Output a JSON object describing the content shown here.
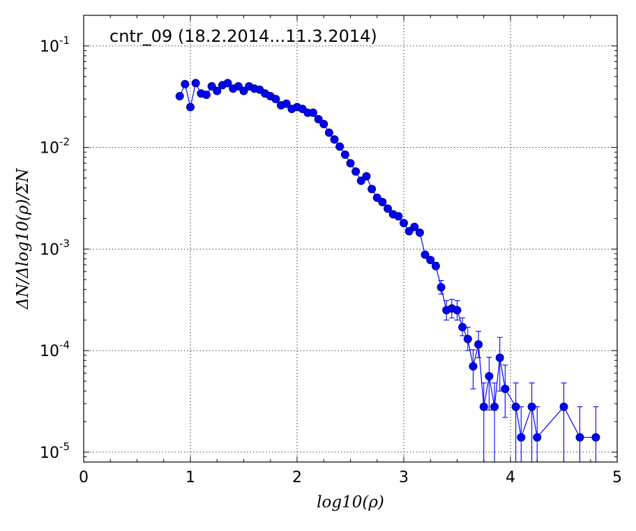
{
  "chart_data": {
    "type": "scatter",
    "title": "cntr_09 (18.2.2014...11.3.2014)",
    "xlabel": "log10(ρ)",
    "ylabel": "ΔN/Δlog10(ρ)/ΣN",
    "xlim": [
      0,
      5
    ],
    "ylim": [
      8e-06,
      0.2
    ],
    "yscale": "log",
    "grid": true,
    "x_ticks": [
      "0",
      "1",
      "2",
      "3",
      "4",
      "5"
    ],
    "y_ticks": [
      {
        "base": "10",
        "exp": "-1"
      },
      {
        "base": "10",
        "exp": "-2"
      },
      {
        "base": "10",
        "exp": "-3"
      },
      {
        "base": "10",
        "exp": "-4"
      },
      {
        "base": "10",
        "exp": "-5"
      }
    ],
    "colors": {
      "series": "#0000ff",
      "marker_edge": "#000080"
    },
    "series": [
      {
        "x": [
          0.9,
          0.95,
          1.0,
          1.05,
          1.1,
          1.15,
          1.2,
          1.25,
          1.3,
          1.35,
          1.4,
          1.45,
          1.5,
          1.55,
          1.6,
          1.65,
          1.7,
          1.75,
          1.8,
          1.85,
          1.9,
          1.95,
          2.0,
          2.05,
          2.1,
          2.15,
          2.2,
          2.25,
          2.3,
          2.35,
          2.4,
          2.45,
          2.5,
          2.55,
          2.6,
          2.65,
          2.7,
          2.75,
          2.8,
          2.85,
          2.9,
          2.95,
          3.0,
          3.05,
          3.1,
          3.15,
          3.2,
          3.25,
          3.3,
          3.35,
          3.4,
          3.45,
          3.5,
          3.55,
          3.6,
          3.65,
          3.7,
          3.75,
          3.8,
          3.85,
          3.9,
          3.95,
          4.05,
          4.1,
          4.2,
          4.25,
          4.5,
          4.65,
          4.8
        ],
        "y": [
          0.032,
          0.042,
          0.025,
          0.043,
          0.034,
          0.033,
          0.04,
          0.036,
          0.041,
          0.043,
          0.038,
          0.04,
          0.036,
          0.04,
          0.038,
          0.037,
          0.034,
          0.032,
          0.03,
          0.026,
          0.027,
          0.024,
          0.025,
          0.024,
          0.022,
          0.022,
          0.019,
          0.017,
          0.014,
          0.012,
          0.0102,
          0.0085,
          0.007,
          0.0058,
          0.0047,
          0.0052,
          0.0039,
          0.0032,
          0.0029,
          0.0025,
          0.0022,
          0.0021,
          0.0018,
          0.0015,
          0.00165,
          0.00145,
          0.00088,
          0.00078,
          0.00068,
          0.00042,
          0.00025,
          0.00026,
          0.00025,
          0.00017,
          0.00013,
          7e-05,
          0.000115,
          2.8e-05,
          5.6e-05,
          2.8e-05,
          8.5e-05,
          4.2e-05,
          2.8e-05,
          1.4e-05,
          2.8e-05,
          1.4e-05,
          2.8e-05,
          1.4e-05,
          1.4e-05
        ],
        "yerr_low": [
          0,
          0,
          0,
          0,
          0,
          0,
          0,
          0,
          0,
          0,
          0,
          0,
          0,
          0,
          0,
          0,
          0,
          0,
          0,
          0,
          0,
          0,
          0,
          0,
          0,
          0,
          0,
          0,
          0,
          0,
          0,
          0,
          0,
          0,
          0,
          0,
          0,
          0,
          0,
          0,
          0,
          0,
          0,
          0,
          0,
          0,
          4e-05,
          4e-05,
          5e-05,
          6e-05,
          5e-05,
          5e-05,
          5e-05,
          3e-05,
          3e-05,
          2.8e-05,
          3e-05,
          2e-05,
          3e-05,
          2e-05,
          4.5e-05,
          2e-05,
          2e-05,
          1.4e-05,
          2e-05,
          1.4e-05,
          2e-05,
          1.4e-05,
          1.4e-05
        ],
        "yerr_high": [
          0,
          0,
          0,
          0,
          0,
          0,
          0,
          0,
          0,
          0,
          0,
          0,
          0,
          0,
          0,
          0,
          0,
          0,
          0,
          0,
          0,
          0,
          0,
          0,
          0,
          0,
          0,
          0,
          0,
          0,
          0,
          0,
          0,
          0,
          0,
          0,
          0,
          0,
          0,
          0,
          0,
          0,
          0,
          0,
          0,
          0,
          5e-05,
          5e-05,
          6e-05,
          7e-05,
          6e-05,
          6e-05,
          6e-05,
          4e-05,
          4e-05,
          3.2e-05,
          4e-05,
          2e-05,
          3e-05,
          2e-05,
          5e-05,
          3e-05,
          2e-05,
          1.4e-05,
          2e-05,
          1.4e-05,
          2e-05,
          1.4e-05,
          1.4e-05
        ]
      }
    ]
  }
}
